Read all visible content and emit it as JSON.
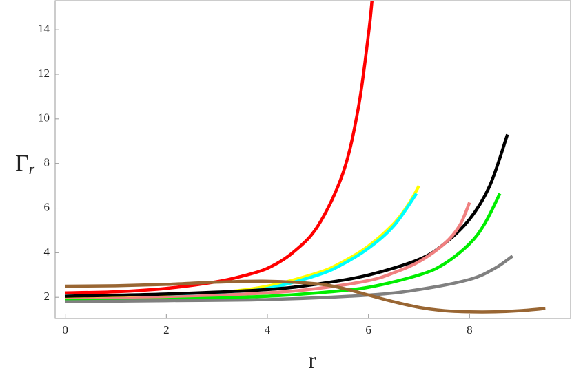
{
  "chart_data": {
    "type": "line",
    "xlabel": "r",
    "ylabel": "Γ",
    "ylabel_sub": "r",
    "xlim": [
      -0.2,
      10.0
    ],
    "ylim": [
      1.05,
      15.3
    ],
    "xticks": [
      0,
      2,
      4,
      6,
      8
    ],
    "yticks": [
      2,
      4,
      6,
      8,
      10,
      12,
      14
    ],
    "series": [
      {
        "color": "#ff0000",
        "x": [
          0,
          1,
          2,
          3,
          3.5,
          4,
          4.5,
          5,
          5.5,
          5.8,
          6.0,
          6.07
        ],
        "values": [
          2.2,
          2.25,
          2.4,
          2.7,
          2.95,
          3.3,
          4.0,
          5.2,
          7.6,
          10.5,
          13.8,
          15.3
        ]
      },
      {
        "color": "#ffff00",
        "x": [
          0,
          1,
          2,
          3,
          4,
          5,
          5.5,
          6,
          6.5,
          6.8,
          7.0
        ],
        "values": [
          1.95,
          2.0,
          2.05,
          2.2,
          2.5,
          3.1,
          3.6,
          4.3,
          5.3,
          6.2,
          7.0
        ]
      },
      {
        "color": "#00ffff",
        "x": [
          0,
          1,
          2,
          3,
          4,
          5,
          5.5,
          6,
          6.5,
          6.95
        ],
        "values": [
          1.85,
          1.9,
          2.0,
          2.15,
          2.4,
          3.0,
          3.5,
          4.2,
          5.2,
          6.65
        ]
      },
      {
        "color": "#000000",
        "x": [
          0,
          2,
          4,
          5,
          6,
          7,
          7.5,
          8,
          8.4,
          8.75
        ],
        "values": [
          2.05,
          2.15,
          2.35,
          2.6,
          3.0,
          3.7,
          4.4,
          5.5,
          7.0,
          9.3
        ]
      },
      {
        "color": "#f08080",
        "x": [
          0,
          2,
          4,
          5,
          6,
          6.5,
          7,
          7.5,
          7.8,
          8.0
        ],
        "values": [
          1.9,
          2.0,
          2.2,
          2.4,
          2.75,
          3.1,
          3.6,
          4.4,
          5.2,
          6.25
        ]
      },
      {
        "color": "#00ee00",
        "x": [
          0,
          2,
          4,
          5,
          6,
          7,
          7.5,
          8,
          8.3,
          8.6
        ],
        "values": [
          1.85,
          1.9,
          2.05,
          2.2,
          2.45,
          3.0,
          3.5,
          4.4,
          5.3,
          6.65
        ]
      },
      {
        "color": "#808080",
        "x": [
          0,
          2,
          4,
          6,
          7,
          8,
          8.5,
          8.85
        ],
        "values": [
          1.8,
          1.85,
          1.9,
          2.1,
          2.35,
          2.8,
          3.3,
          3.85
        ]
      },
      {
        "color": "#996633",
        "x": [
          0,
          1,
          2,
          3,
          4,
          5,
          5.5,
          6,
          6.5,
          7,
          7.5,
          8,
          8.5,
          9,
          9.5
        ],
        "values": [
          2.5,
          2.52,
          2.58,
          2.68,
          2.72,
          2.6,
          2.4,
          2.1,
          1.8,
          1.55,
          1.4,
          1.35,
          1.35,
          1.4,
          1.5
        ]
      }
    ]
  }
}
